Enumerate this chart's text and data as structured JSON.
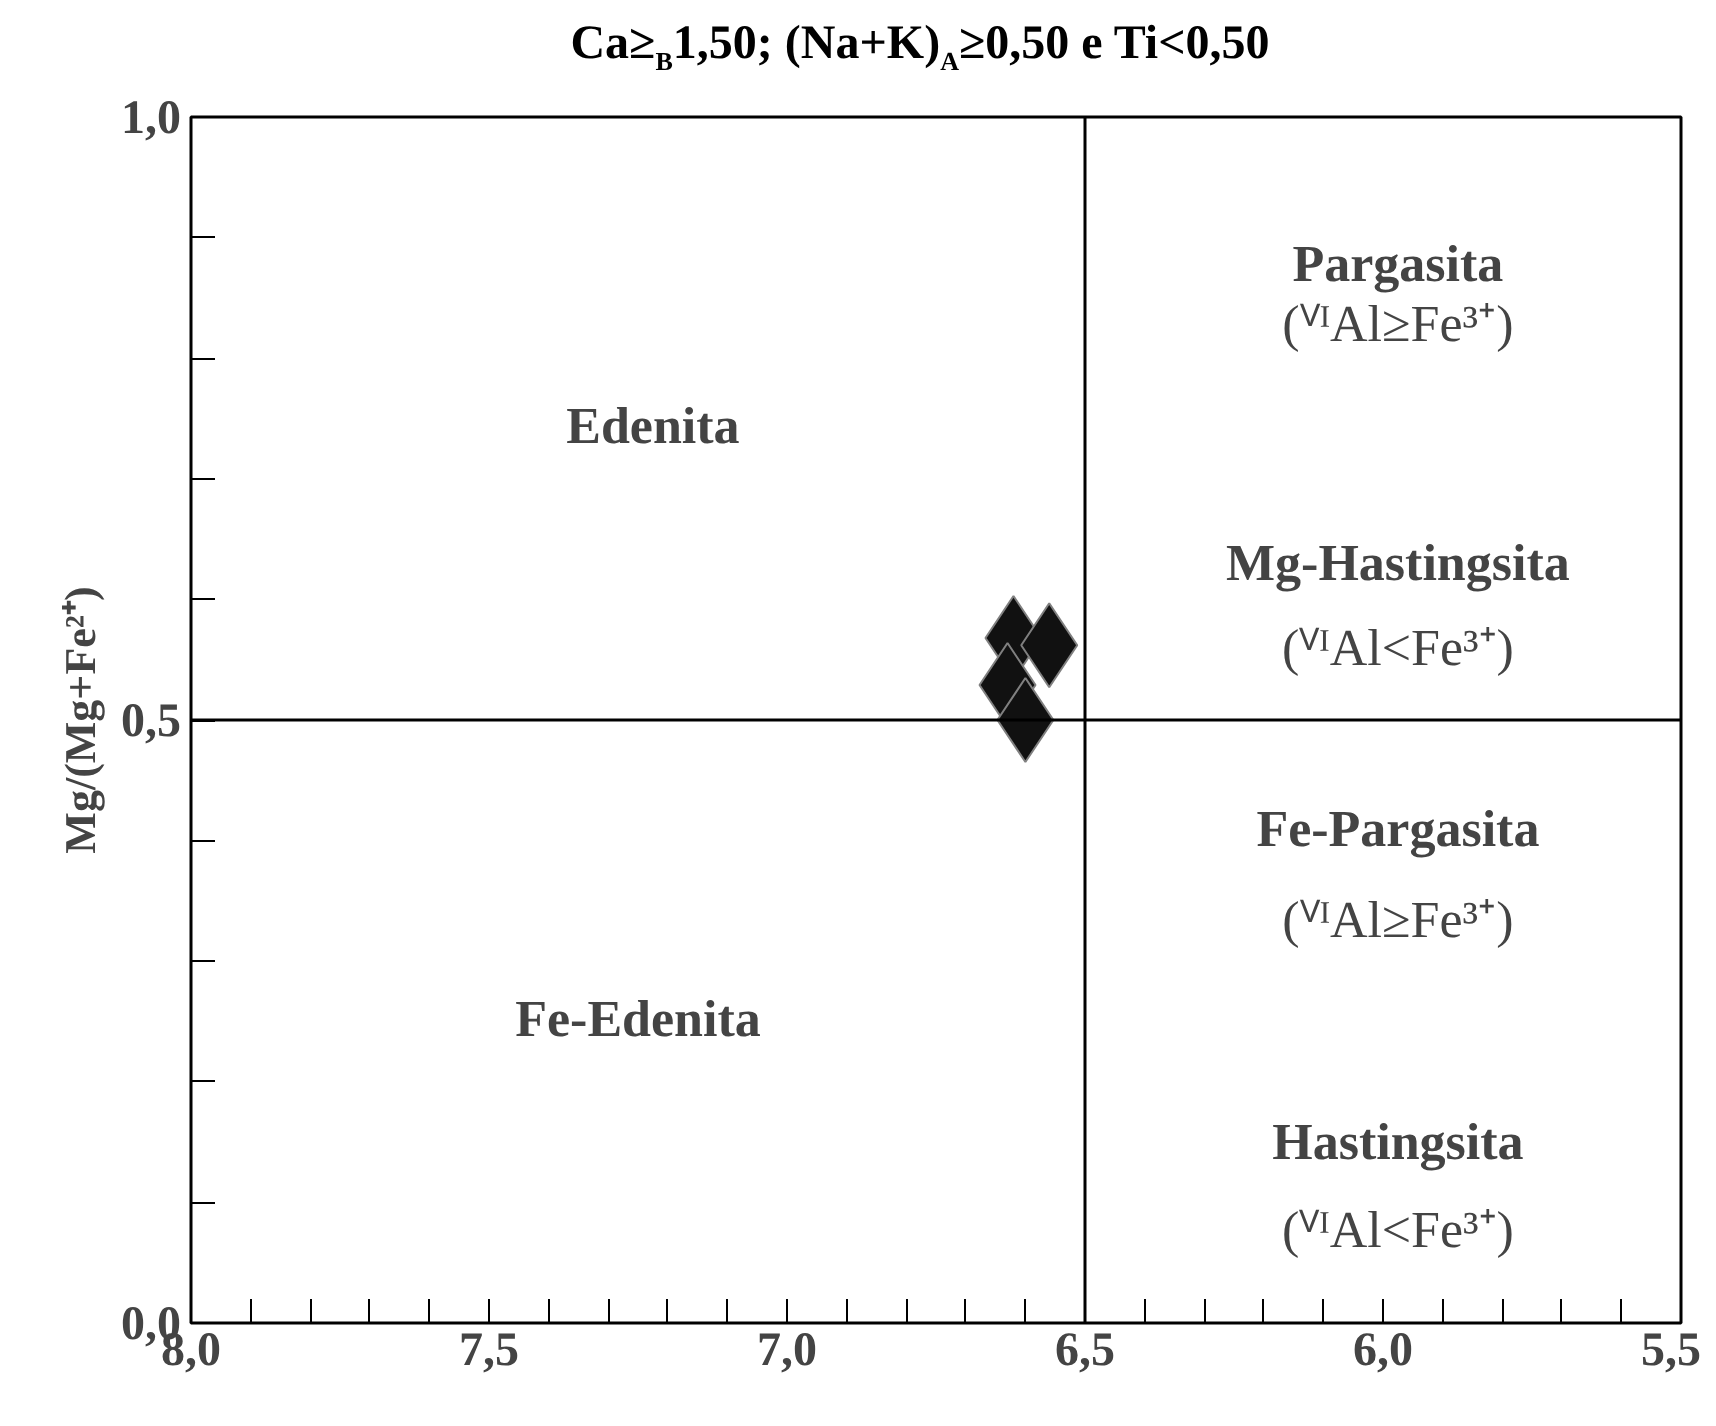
{
  "chart_data": {
    "type": "scatter",
    "title": "Ca≥$_{B}$1,50; (Na+K)$_{A}$≥0,50 e Ti<0,50",
    "ylabel": "Mg/(Mg+Fe²⁺)",
    "x": [
      6.62,
      6.56,
      6.63,
      6.6
    ],
    "series": [
      {
        "color": "#111111",
        "values": [
          0.568,
          0.562,
          0.529,
          0.5
        ]
      }
    ],
    "marker": "diamond",
    "grid": false,
    "xlim": [
      8.0,
      5.5
    ],
    "ylim": [
      0.0,
      1.0
    ],
    "xticks": [
      {
        "value": 8.0,
        "label": "8,0"
      },
      {
        "value": 7.9,
        "label": null
      },
      {
        "value": 7.8,
        "label": null
      },
      {
        "value": 7.7,
        "label": null
      },
      {
        "value": 7.6,
        "label": null
      },
      {
        "value": 7.5,
        "label": "7,5"
      },
      {
        "value": 7.4,
        "label": null
      },
      {
        "value": 7.3,
        "label": null
      },
      {
        "value": 7.2,
        "label": null
      },
      {
        "value": 7.1,
        "label": null
      },
      {
        "value": 7.0,
        "label": "7,0"
      },
      {
        "value": 6.9,
        "label": null
      },
      {
        "value": 6.8,
        "label": null
      },
      {
        "value": 6.7,
        "label": null
      },
      {
        "value": 6.6,
        "label": null
      },
      {
        "value": 6.5,
        "label": "6,5"
      },
      {
        "value": 6.4,
        "label": null
      },
      {
        "value": 6.3,
        "label": null
      },
      {
        "value": 6.2,
        "label": null
      },
      {
        "value": 6.1,
        "label": null
      },
      {
        "value": 6.0,
        "label": "6,0"
      },
      {
        "value": 5.9,
        "label": null
      },
      {
        "value": 5.8,
        "label": null
      },
      {
        "value": 5.7,
        "label": null
      },
      {
        "value": 5.6,
        "label": null
      },
      {
        "value": 5.5,
        "label": "5,5"
      }
    ],
    "yticks": [
      {
        "value": 0.0,
        "label": "0,0"
      },
      {
        "value": 0.1,
        "label": null
      },
      {
        "value": 0.2,
        "label": null
      },
      {
        "value": 0.3,
        "label": null
      },
      {
        "value": 0.4,
        "label": null
      },
      {
        "value": 0.5,
        "label": "0,5"
      },
      {
        "value": 0.6,
        "label": null
      },
      {
        "value": 0.7,
        "label": null
      },
      {
        "value": 0.8,
        "label": null
      },
      {
        "value": 0.9,
        "label": null
      },
      {
        "value": 1.0,
        "label": "1,0"
      }
    ],
    "ref_lines": [
      {
        "axis": "x",
        "value": 6.5,
        "color": "#000000",
        "line_style": "solid"
      },
      {
        "axis": "y",
        "value": 0.5,
        "color": "#000000",
        "line_style": "solid"
      }
    ],
    "annotations": [
      "Edenita",
      "Fe-Edenita",
      "Pargasita",
      "(ⱽᴵAl≥Fe³⁺)",
      "Mg-Hastingsita",
      "(ⱽᴵAl<Fe³⁺)",
      "Fe-Pargasita",
      "(ⱽᴵAl≥Fe³⁺)",
      "Hastingsita",
      "(ⱽᴵAl<Fe³⁺)"
    ]
  }
}
